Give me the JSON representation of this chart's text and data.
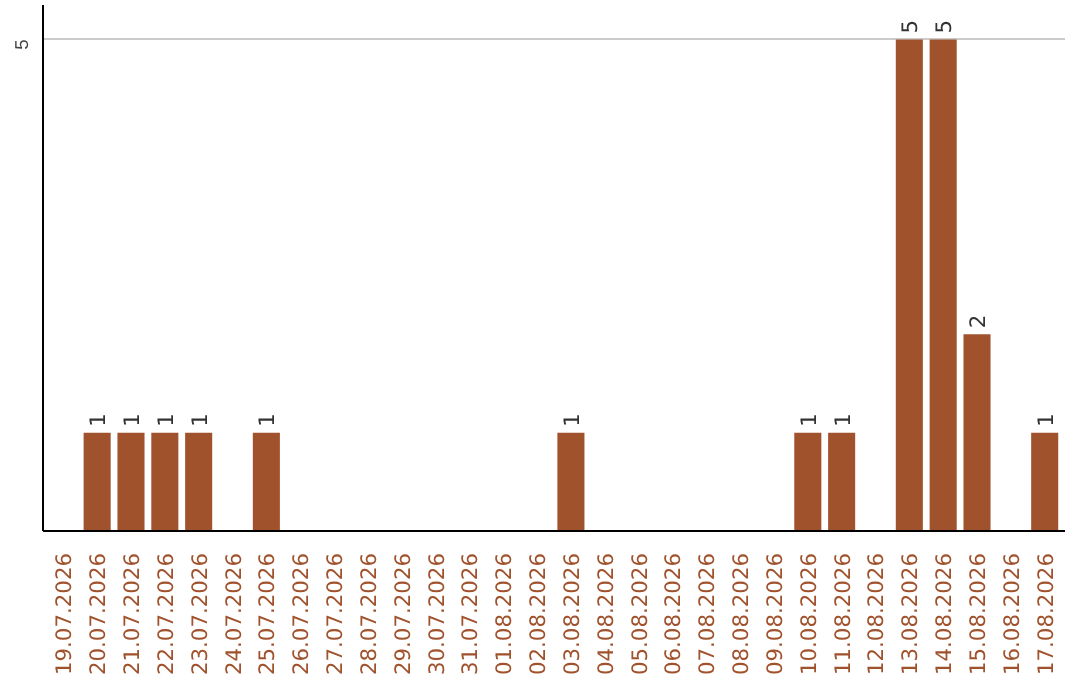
{
  "chart_data": {
    "type": "bar",
    "categories": [
      "19.07.2026",
      "20.07.2026",
      "21.07.2026",
      "22.07.2026",
      "23.07.2026",
      "24.07.2026",
      "25.07.2026",
      "26.07.2026",
      "27.07.2026",
      "28.07.2026",
      "29.07.2026",
      "30.07.2026",
      "31.07.2026",
      "01.08.2026",
      "02.08.2026",
      "03.08.2026",
      "04.08.2026",
      "05.08.2026",
      "06.08.2026",
      "07.08.2026",
      "08.08.2026",
      "09.08.2026",
      "10.08.2026",
      "11.08.2026",
      "12.08.2026",
      "13.08.2026",
      "14.08.2026",
      "15.08.2026",
      "16.08.2026",
      "17.08.2026"
    ],
    "values": [
      0,
      1,
      1,
      1,
      1,
      0,
      1,
      0,
      0,
      0,
      0,
      0,
      0,
      0,
      0,
      1,
      0,
      0,
      0,
      0,
      0,
      0,
      1,
      1,
      0,
      5,
      5,
      2,
      0,
      1
    ],
    "value_labels": [
      null,
      "1",
      "1",
      "1",
      "1",
      null,
      "1",
      null,
      null,
      null,
      null,
      null,
      null,
      null,
      null,
      "1",
      null,
      null,
      null,
      null,
      null,
      null,
      "1",
      "1",
      null,
      "5",
      "5",
      "2",
      null,
      "1"
    ],
    "color": "#a0522d",
    "ylim": [
      0,
      5.35
    ],
    "yticks": [
      5
    ],
    "grid": "y"
  }
}
